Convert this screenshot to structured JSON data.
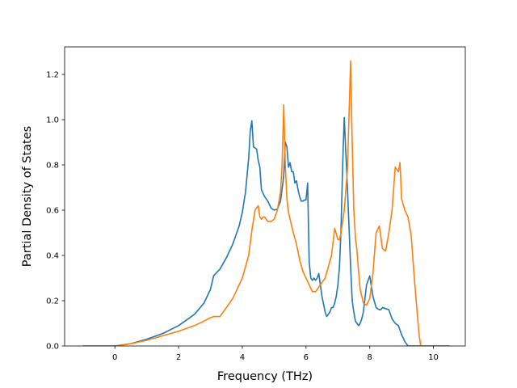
{
  "chart_data": {
    "type": "line",
    "title": "",
    "xlabel": "Frequency (THz)",
    "ylabel": "Partial Density of States",
    "xlim": [
      -1.5777,
      11.0
    ],
    "ylim": [
      0.0,
      1.3216
    ],
    "xticks": [
      0,
      2,
      4,
      6,
      8,
      10
    ],
    "yticks": [
      0.0,
      0.2,
      0.4,
      0.6,
      0.8,
      1.0,
      1.2
    ],
    "xtick_labels": [
      "0",
      "2",
      "4",
      "6",
      "8",
      "10"
    ],
    "ytick_labels": [
      "0.0",
      "0.2",
      "0.4",
      "0.6",
      "0.8",
      "1.0",
      "1.2"
    ],
    "grid": false,
    "legend": "none",
    "series": [
      {
        "color": "#1f77b4",
        "x": [
          -1.0,
          0.0,
          0.5,
          1.0,
          1.5,
          2.0,
          2.5,
          2.8,
          3.0,
          3.1,
          3.3,
          3.5,
          3.7,
          3.9,
          4.0,
          4.1,
          4.2,
          4.25,
          4.3,
          4.35,
          4.45,
          4.5,
          4.55,
          4.6,
          4.7,
          4.8,
          4.9,
          5.0,
          5.1,
          5.2,
          5.3,
          5.35,
          5.4,
          5.45,
          5.5,
          5.55,
          5.6,
          5.65,
          5.7,
          5.75,
          5.8,
          5.85,
          5.9,
          5.95,
          6.0,
          6.05,
          6.1,
          6.15,
          6.2,
          6.25,
          6.3,
          6.35,
          6.4,
          6.5,
          6.6,
          6.65,
          6.7,
          6.75,
          6.8,
          6.85,
          6.9,
          6.95,
          7.0,
          7.05,
          7.1,
          7.15,
          7.2,
          7.3,
          7.4,
          7.45,
          7.5,
          7.55,
          7.6,
          7.65,
          7.7,
          7.75,
          7.8,
          7.9,
          8.0,
          8.1,
          8.2,
          8.3,
          8.35,
          8.4,
          8.5,
          8.6,
          8.7,
          8.8,
          8.9,
          8.95,
          9.0,
          9.1,
          9.2,
          9.3,
          9.4,
          9.5,
          9.55,
          9.6,
          10.0,
          10.5
        ],
        "y": [
          0.0,
          0.0,
          0.01,
          0.03,
          0.055,
          0.09,
          0.14,
          0.19,
          0.25,
          0.31,
          0.34,
          0.39,
          0.45,
          0.53,
          0.59,
          0.68,
          0.83,
          0.95,
          0.995,
          0.88,
          0.87,
          0.82,
          0.79,
          0.69,
          0.66,
          0.64,
          0.61,
          0.6,
          0.605,
          0.64,
          0.75,
          0.9,
          0.88,
          0.79,
          0.81,
          0.77,
          0.77,
          0.72,
          0.73,
          0.69,
          0.66,
          0.64,
          0.64,
          0.645,
          0.645,
          0.72,
          0.37,
          0.3,
          0.29,
          0.3,
          0.29,
          0.3,
          0.32,
          0.22,
          0.15,
          0.13,
          0.14,
          0.15,
          0.17,
          0.17,
          0.19,
          0.22,
          0.27,
          0.35,
          0.52,
          0.8,
          1.01,
          0.7,
          0.35,
          0.2,
          0.15,
          0.11,
          0.1,
          0.09,
          0.1,
          0.12,
          0.15,
          0.27,
          0.31,
          0.22,
          0.17,
          0.16,
          0.16,
          0.17,
          0.165,
          0.16,
          0.12,
          0.1,
          0.09,
          0.07,
          0.05,
          0.02,
          0.0,
          0.0,
          0.0,
          0.0,
          0.0,
          0.0,
          0.0,
          0.0
        ]
      },
      {
        "color": "#ff7f0e",
        "x": [
          -1.0,
          0.0,
          0.5,
          1.0,
          1.5,
          2.0,
          2.5,
          2.8,
          3.0,
          3.1,
          3.2,
          3.3,
          3.5,
          3.7,
          3.9,
          4.0,
          4.2,
          4.3,
          4.4,
          4.5,
          4.55,
          4.6,
          4.65,
          4.7,
          4.8,
          4.9,
          5.0,
          5.1,
          5.2,
          5.25,
          5.3,
          5.35,
          5.4,
          5.45,
          5.5,
          5.6,
          5.7,
          5.8,
          5.9,
          6.0,
          6.1,
          6.2,
          6.25,
          6.3,
          6.4,
          6.5,
          6.6,
          6.7,
          6.8,
          6.9,
          7.0,
          7.05,
          7.1,
          7.15,
          7.2,
          7.3,
          7.4,
          7.45,
          7.5,
          7.55,
          7.6,
          7.65,
          7.7,
          7.8,
          7.9,
          8.0,
          8.1,
          8.2,
          8.3,
          8.35,
          8.4,
          8.5,
          8.6,
          8.7,
          8.8,
          8.9,
          8.95,
          9.0,
          9.1,
          9.2,
          9.3,
          9.4,
          9.5,
          9.55,
          9.6,
          10.0,
          10.5
        ],
        "y": [
          0.0,
          0.0,
          0.01,
          0.025,
          0.045,
          0.065,
          0.09,
          0.11,
          0.125,
          0.13,
          0.13,
          0.13,
          0.17,
          0.21,
          0.27,
          0.3,
          0.4,
          0.51,
          0.6,
          0.62,
          0.57,
          0.56,
          0.57,
          0.57,
          0.55,
          0.55,
          0.56,
          0.6,
          0.68,
          0.8,
          1.065,
          0.8,
          0.65,
          0.59,
          0.56,
          0.5,
          0.45,
          0.38,
          0.33,
          0.3,
          0.27,
          0.24,
          0.24,
          0.24,
          0.26,
          0.28,
          0.3,
          0.35,
          0.4,
          0.52,
          0.47,
          0.47,
          0.5,
          0.55,
          0.6,
          0.78,
          1.26,
          0.9,
          0.6,
          0.48,
          0.42,
          0.33,
          0.25,
          0.19,
          0.18,
          0.21,
          0.32,
          0.5,
          0.53,
          0.48,
          0.43,
          0.42,
          0.5,
          0.6,
          0.79,
          0.77,
          0.81,
          0.65,
          0.6,
          0.57,
          0.49,
          0.3,
          0.13,
          0.05,
          0.0,
          0.0,
          0.0
        ]
      }
    ]
  }
}
